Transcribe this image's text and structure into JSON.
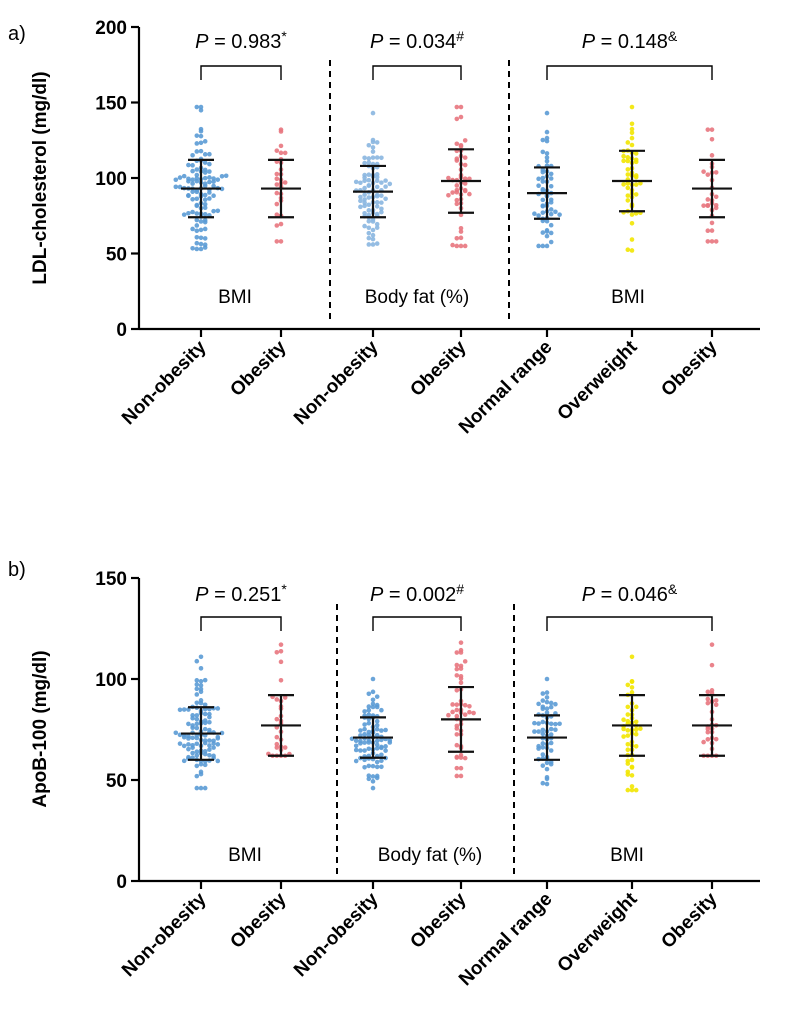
{
  "chart_data": [
    {
      "type": "scatter",
      "panel_label": "a)",
      "ylabel": "LDL-cholesterol (mg/dl)",
      "ylim": [
        0,
        200
      ],
      "yticks": [
        0,
        50,
        100,
        150,
        200
      ],
      "categories": [
        "Non-obesity",
        "Obesity",
        "Non-obesity",
        "Obesity",
        "Normal range",
        "Overweight",
        "Obesity"
      ],
      "groups": [
        {
          "label": "BMI",
          "categories": [
            0,
            1
          ]
        },
        {
          "label": "Body fat (%)",
          "categories": [
            2,
            3
          ]
        },
        {
          "label": "BMI",
          "categories": [
            4,
            5,
            6
          ]
        }
      ],
      "comparisons": [
        {
          "prefix": "P",
          "text": " = 0.983",
          "symbol": "*",
          "from": 0,
          "to": 1
        },
        {
          "prefix": "P",
          "text": " = 0.034",
          "symbol": "#",
          "from": 2,
          "to": 3
        },
        {
          "prefix": "P",
          "text": " = 0.148",
          "symbol": "&",
          "from": 4,
          "to": 6
        }
      ],
      "series": [
        {
          "name": "Non-obesity",
          "color": "#5b9bd5",
          "n": 110,
          "mean": 93,
          "sd": 19,
          "min": 53,
          "max": 147
        },
        {
          "name": "Obesity",
          "color": "#e8767e",
          "n": 30,
          "mean": 93,
          "sd": 19,
          "min": 58,
          "max": 132
        },
        {
          "name": "Non-obesity",
          "color": "#8ab6e0",
          "n": 90,
          "mean": 91,
          "sd": 17,
          "min": 56,
          "max": 143
        },
        {
          "name": "Obesity",
          "color": "#e8767e",
          "n": 50,
          "mean": 98,
          "sd": 21,
          "min": 55,
          "max": 147
        },
        {
          "name": "Normal range",
          "color": "#5b9bd5",
          "n": 60,
          "mean": 90,
          "sd": 17,
          "min": 55,
          "max": 143
        },
        {
          "name": "Overweight",
          "color": "#f2e600",
          "n": 50,
          "mean": 98,
          "sd": 20,
          "min": 52,
          "max": 147
        },
        {
          "name": "Obesity",
          "color": "#e8767e",
          "n": 30,
          "mean": 93,
          "sd": 19,
          "min": 58,
          "max": 132
        }
      ]
    },
    {
      "type": "scatter",
      "panel_label": "b)",
      "ylabel": "ApoB-100 (mg/dl)",
      "ylim": [
        0,
        150
      ],
      "yticks": [
        0,
        50,
        100,
        150
      ],
      "categories": [
        "Non-obesity",
        "Obesity",
        "Non-obesity",
        "Obesity",
        "Normal range",
        "Overweight",
        "Obesity"
      ],
      "groups": [
        {
          "label": "BMI",
          "categories": [
            0,
            1
          ]
        },
        {
          "label": "Body fat (%)",
          "categories": [
            2,
            3
          ]
        },
        {
          "label": "BMI",
          "categories": [
            4,
            5,
            6
          ]
        }
      ],
      "comparisons": [
        {
          "prefix": "P",
          "text": " = 0.251",
          "symbol": "*",
          "from": 0,
          "to": 1
        },
        {
          "prefix": "P",
          "text": " = 0.002",
          "symbol": "#",
          "from": 2,
          "to": 3
        },
        {
          "prefix": "P",
          "text": " = 0.046",
          "symbol": "&",
          "from": 4,
          "to": 6
        }
      ],
      "series": [
        {
          "name": "Non-obesity",
          "color": "#5b9bd5",
          "n": 110,
          "mean": 73,
          "sd": 13,
          "min": 46,
          "max": 111
        },
        {
          "name": "Obesity",
          "color": "#e8767e",
          "n": 30,
          "mean": 77,
          "sd": 15,
          "min": 62,
          "max": 117
        },
        {
          "name": "Non-obesity",
          "color": "#5b9bd5",
          "n": 90,
          "mean": 71,
          "sd": 10,
          "min": 46,
          "max": 100
        },
        {
          "name": "Obesity",
          "color": "#e8767e",
          "n": 50,
          "mean": 80,
          "sd": 16,
          "min": 52,
          "max": 118
        },
        {
          "name": "Normal range",
          "color": "#5b9bd5",
          "n": 60,
          "mean": 71,
          "sd": 11,
          "min": 48,
          "max": 100
        },
        {
          "name": "Overweight",
          "color": "#f2e600",
          "n": 50,
          "mean": 77,
          "sd": 15,
          "min": 45,
          "max": 111
        },
        {
          "name": "Obesity",
          "color": "#e8767e",
          "n": 30,
          "mean": 77,
          "sd": 15,
          "min": 62,
          "max": 117
        }
      ]
    }
  ]
}
